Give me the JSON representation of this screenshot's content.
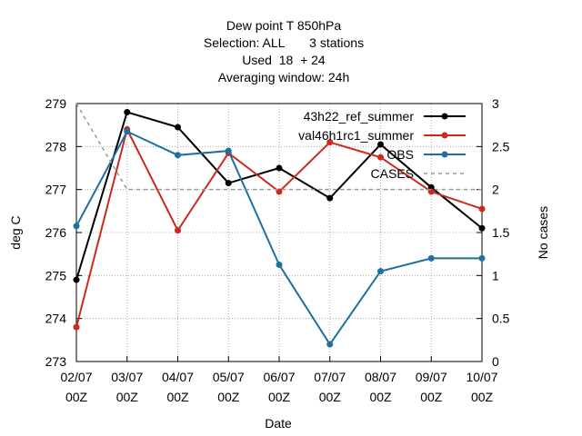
{
  "title_lines": [
    "Dew point T 850hPa",
    "Selection: ALL       3 stations",
    "Used  18  + 24",
    "Averaging window: 24h"
  ],
  "chart_data": {
    "type": "line",
    "title": "Dew point T 850hPa",
    "xlabel": "Date",
    "ylabel": "deg C",
    "y2label": "No cases",
    "categories": [
      "02/07\n00Z",
      "03/07\n00Z",
      "04/07\n00Z",
      "05/07\n00Z",
      "06/07\n00Z",
      "07/07\n00Z",
      "08/07\n00Z",
      "09/07\n00Z",
      "10/07\n00Z"
    ],
    "ylim": [
      273,
      279
    ],
    "yticks": [
      "273",
      "274",
      "275",
      "276",
      "277",
      "278",
      "279"
    ],
    "y2lim": [
      0,
      3
    ],
    "y2ticks": [
      "0",
      "0.5",
      "1",
      "1.5",
      "2",
      "2.5",
      "3"
    ],
    "grid": true,
    "legend_position": "top-right",
    "series": [
      {
        "name": "43h22_ref_summer",
        "color": "#000000",
        "axis": "y",
        "marker": true,
        "dashed": false,
        "values": [
          274.9,
          278.8,
          278.45,
          277.15,
          277.5,
          276.8,
          278.05,
          277.05,
          276.1
        ]
      },
      {
        "name": "val46h1rc1_summer",
        "color": "#cc2a1e",
        "axis": "y",
        "marker": true,
        "dashed": false,
        "values": [
          273.8,
          278.4,
          276.05,
          277.85,
          276.95,
          278.1,
          277.75,
          276.95,
          276.55
        ]
      },
      {
        "name": "OBS",
        "color": "#1f6fa0",
        "axis": "y",
        "marker": true,
        "dashed": false,
        "values": [
          276.15,
          278.35,
          277.8,
          277.9,
          275.25,
          273.4,
          275.1,
          275.4,
          275.4
        ]
      },
      {
        "name": "CASES",
        "color": "#999999",
        "axis": "y2",
        "marker": false,
        "dashed": true,
        "values": [
          3,
          2,
          2,
          2,
          2,
          2,
          2,
          2,
          2
        ]
      }
    ]
  }
}
